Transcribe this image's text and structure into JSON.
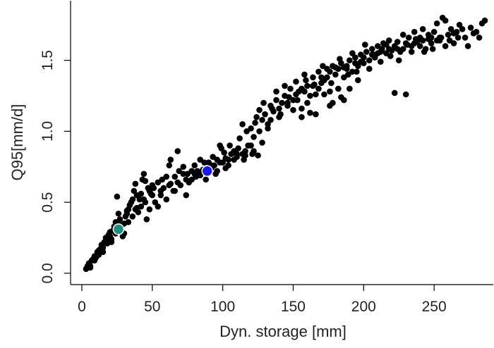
{
  "chart_data": {
    "type": "scatter",
    "title": "",
    "xlabel": "Dyn. storage [mm]",
    "ylabel": "Q95[mm/d]",
    "xlim": [
      -8,
      292
    ],
    "ylim": [
      -0.08,
      1.92
    ],
    "xticks": [
      0,
      50,
      100,
      150,
      200,
      250
    ],
    "yticks": [
      0.0,
      0.5,
      1.0,
      1.5
    ],
    "xtick_labels": [
      "0",
      "50",
      "100",
      "150",
      "200",
      "250"
    ],
    "ytick_labels": [
      "0.0",
      "0.5",
      "1.0",
      "1.5"
    ],
    "grid": false,
    "point_color": "#000000",
    "series": [
      {
        "points": [
          [
            3,
            0.03
          ],
          [
            4,
            0.05
          ],
          [
            5,
            0.07
          ],
          [
            6,
            0.05
          ],
          [
            7,
            0.09
          ],
          [
            8,
            0.1
          ],
          [
            9,
            0.12
          ],
          [
            10,
            0.11
          ],
          [
            11,
            0.15
          ],
          [
            12,
            0.13
          ],
          [
            13,
            0.17
          ],
          [
            14,
            0.2
          ],
          [
            15,
            0.18
          ],
          [
            16,
            0.22
          ],
          [
            17,
            0.25
          ],
          [
            18,
            0.21
          ],
          [
            19,
            0.27
          ],
          [
            20,
            0.29
          ],
          [
            21,
            0.24
          ],
          [
            22,
            0.3
          ],
          [
            23,
            0.33
          ],
          [
            24,
            0.36
          ],
          [
            25,
            0.54
          ],
          [
            26,
            0.42
          ],
          [
            27,
            0.38
          ],
          [
            28,
            0.33
          ],
          [
            29,
            0.26
          ],
          [
            30,
            0.28
          ],
          [
            31,
            0.4
          ],
          [
            32,
            0.44
          ],
          [
            33,
            0.36
          ],
          [
            34,
            0.48
          ],
          [
            35,
            0.5
          ],
          [
            36,
            0.4
          ],
          [
            37,
            0.58
          ],
          [
            38,
            0.63
          ],
          [
            39,
            0.46
          ],
          [
            40,
            0.43
          ],
          [
            41,
            0.52
          ],
          [
            42,
            0.56
          ],
          [
            43,
            0.66
          ],
          [
            44,
            0.7
          ],
          [
            45,
            0.5
          ],
          [
            46,
            0.38
          ],
          [
            47,
            0.6
          ],
          [
            48,
            0.45
          ],
          [
            49,
            0.56
          ],
          [
            50,
            0.62
          ],
          [
            52,
            0.5
          ],
          [
            54,
            0.47
          ],
          [
            56,
            0.55
          ],
          [
            58,
            0.6
          ],
          [
            60,
            0.52
          ],
          [
            62,
            0.76
          ],
          [
            63,
            0.8
          ],
          [
            65,
            0.58
          ],
          [
            66,
            0.68
          ],
          [
            68,
            0.86
          ],
          [
            70,
            0.62
          ],
          [
            72,
            0.7
          ],
          [
            74,
            0.55
          ],
          [
            76,
            0.64
          ],
          [
            78,
            0.66
          ],
          [
            80,
            0.76
          ],
          [
            82,
            0.72
          ],
          [
            84,
            0.69
          ],
          [
            86,
            0.73
          ],
          [
            88,
            0.66
          ],
          [
            90,
            0.78
          ],
          [
            92,
            0.74
          ],
          [
            94,
            0.76
          ],
          [
            95,
            0.7
          ],
          [
            96,
            0.8
          ],
          [
            98,
            0.9
          ],
          [
            100,
            0.78
          ],
          [
            101,
            0.85
          ],
          [
            102,
            0.81
          ],
          [
            104,
            0.76
          ],
          [
            106,
            0.84
          ],
          [
            108,
            0.8
          ],
          [
            110,
            0.82
          ],
          [
            112,
            0.95
          ],
          [
            114,
            1.05
          ],
          [
            115,
            0.8
          ],
          [
            116,
            0.86
          ],
          [
            118,
            0.9
          ],
          [
            120,
            1.02
          ],
          [
            121,
            0.84
          ],
          [
            122,
            0.96
          ],
          [
            124,
            1.1
          ],
          [
            125,
            0.83
          ],
          [
            126,
            1.0
          ],
          [
            128,
            1.08
          ],
          [
            130,
            1.12
          ],
          [
            132,
            1.05
          ],
          [
            134,
            1.18
          ],
          [
            136,
            1.14
          ],
          [
            138,
            1.22
          ],
          [
            140,
            1.1
          ],
          [
            142,
            1.2
          ],
          [
            144,
            1.25
          ],
          [
            146,
            1.18
          ],
          [
            148,
            1.3
          ],
          [
            150,
            1.22
          ],
          [
            152,
            1.35
          ],
          [
            154,
            1.28
          ],
          [
            156,
            1.16
          ],
          [
            158,
            1.4
          ],
          [
            160,
            1.32
          ],
          [
            162,
            1.13
          ],
          [
            164,
            1.38
          ],
          [
            166,
            1.26
          ],
          [
            168,
            1.42
          ],
          [
            170,
            1.34
          ],
          [
            172,
            1.36
          ],
          [
            174,
            1.44
          ],
          [
            176,
            1.28
          ],
          [
            178,
            1.46
          ],
          [
            180,
            1.4
          ],
          [
            182,
            1.3
          ],
          [
            184,
            1.48
          ],
          [
            186,
            1.38
          ],
          [
            188,
            1.44
          ],
          [
            190,
            1.5
          ],
          [
            192,
            1.42
          ],
          [
            194,
            1.52
          ],
          [
            196,
            1.46
          ],
          [
            198,
            1.54
          ],
          [
            200,
            1.48
          ],
          [
            202,
            1.56
          ],
          [
            204,
            1.5
          ],
          [
            206,
            1.58
          ],
          [
            208,
            1.52
          ],
          [
            210,
            1.6
          ],
          [
            212,
            1.49
          ],
          [
            214,
            1.62
          ],
          [
            216,
            1.55
          ],
          [
            218,
            1.64
          ],
          [
            220,
            1.57
          ],
          [
            222,
            1.27
          ],
          [
            224,
            1.63
          ],
          [
            226,
            1.56
          ],
          [
            228,
            1.68
          ],
          [
            230,
            1.26
          ],
          [
            232,
            1.66
          ],
          [
            234,
            1.6
          ],
          [
            236,
            1.7
          ],
          [
            238,
            1.63
          ],
          [
            240,
            1.66
          ],
          [
            242,
            1.72
          ],
          [
            244,
            1.58
          ],
          [
            246,
            1.65
          ],
          [
            248,
            1.62
          ],
          [
            250,
            1.7
          ],
          [
            252,
            1.76
          ],
          [
            254,
            1.64
          ],
          [
            256,
            1.8
          ],
          [
            258,
            1.78
          ],
          [
            260,
            1.68
          ],
          [
            262,
            1.72
          ],
          [
            264,
            1.62
          ],
          [
            266,
            1.7
          ],
          [
            268,
            1.75
          ],
          [
            272,
            1.66
          ],
          [
            276,
            1.73
          ],
          [
            280,
            1.7
          ],
          [
            284,
            1.76
          ],
          [
            286,
            1.78
          ],
          [
            6,
            0.04
          ],
          [
            9,
            0.09
          ],
          [
            12,
            0.16
          ],
          [
            15,
            0.15
          ],
          [
            18,
            0.24
          ],
          [
            21,
            0.22
          ],
          [
            24,
            0.28
          ],
          [
            27,
            0.31
          ],
          [
            30,
            0.35
          ],
          [
            33,
            0.45
          ],
          [
            36,
            0.52
          ],
          [
            39,
            0.55
          ],
          [
            42,
            0.47
          ],
          [
            45,
            0.65
          ],
          [
            48,
            0.58
          ],
          [
            51,
            0.6
          ],
          [
            54,
            0.64
          ],
          [
            57,
            0.66
          ],
          [
            60,
            0.68
          ],
          [
            63,
            0.63
          ],
          [
            66,
            0.58
          ],
          [
            69,
            0.72
          ],
          [
            72,
            0.75
          ],
          [
            75,
            0.7
          ],
          [
            78,
            0.72
          ],
          [
            81,
            0.68
          ],
          [
            84,
            0.8
          ],
          [
            87,
            0.78
          ],
          [
            90,
            0.73
          ],
          [
            93,
            0.82
          ],
          [
            96,
            0.72
          ],
          [
            99,
            0.88
          ],
          [
            102,
            0.74
          ],
          [
            105,
            0.9
          ],
          [
            108,
            0.86
          ],
          [
            111,
            0.88
          ],
          [
            114,
            0.84
          ],
          [
            117,
            1.0
          ],
          [
            120,
            0.9
          ],
          [
            123,
            1.06
          ],
          [
            126,
            1.15
          ],
          [
            129,
            1.2
          ],
          [
            132,
            1.02
          ],
          [
            135,
            1.16
          ],
          [
            138,
            1.28
          ],
          [
            141,
            1.12
          ],
          [
            144,
            1.32
          ],
          [
            147,
            1.24
          ],
          [
            150,
            1.15
          ],
          [
            153,
            1.22
          ],
          [
            156,
            1.3
          ],
          [
            159,
            1.36
          ],
          [
            162,
            1.25
          ],
          [
            165,
            1.33
          ],
          [
            168,
            1.3
          ],
          [
            171,
            1.46
          ],
          [
            174,
            1.38
          ],
          [
            177,
            1.34
          ],
          [
            180,
            1.45
          ],
          [
            183,
            1.51
          ],
          [
            186,
            1.45
          ],
          [
            189,
            1.4
          ],
          [
            192,
            1.55
          ],
          [
            195,
            1.42
          ],
          [
            198,
            1.49
          ],
          [
            201,
            1.61
          ],
          [
            204,
            1.44
          ],
          [
            207,
            1.54
          ],
          [
            210,
            1.55
          ],
          [
            213,
            1.58
          ],
          [
            216,
            1.61
          ],
          [
            219,
            1.53
          ],
          [
            222,
            1.6
          ],
          [
            225,
            1.5
          ],
          [
            228,
            1.58
          ],
          [
            231,
            1.61
          ],
          [
            234,
            1.56
          ],
          [
            237,
            1.65
          ],
          [
            240,
            1.6
          ],
          [
            243,
            1.56
          ],
          [
            246,
            1.68
          ],
          [
            249,
            1.58
          ],
          [
            252,
            1.64
          ],
          [
            255,
            1.66
          ],
          [
            258,
            1.6
          ],
          [
            261,
            1.64
          ],
          [
            264,
            1.69
          ],
          [
            267,
            1.66
          ],
          [
            270,
            1.72
          ],
          [
            274,
            1.6
          ],
          [
            278,
            1.69
          ],
          [
            282,
            1.66
          ],
          [
            20,
            0.26
          ],
          [
            26,
            0.35
          ],
          [
            32,
            0.42
          ],
          [
            38,
            0.45
          ],
          [
            44,
            0.52
          ],
          [
            50,
            0.55
          ],
          [
            56,
            0.58
          ],
          [
            62,
            0.62
          ],
          [
            68,
            0.64
          ],
          [
            74,
            0.66
          ],
          [
            80,
            0.7
          ],
          [
            86,
            0.72
          ],
          [
            92,
            0.76
          ],
          [
            98,
            0.78
          ],
          [
            104,
            0.8
          ],
          [
            110,
            0.84
          ],
          [
            116,
            0.83
          ],
          [
            122,
            0.86
          ],
          [
            128,
            0.92
          ],
          [
            134,
            1.08
          ],
          [
            140,
            1.16
          ],
          [
            146,
            1.2
          ],
          [
            152,
            1.26
          ],
          [
            158,
            1.28
          ],
          [
            164,
            1.32
          ],
          [
            170,
            1.38
          ],
          [
            176,
            1.42
          ],
          [
            182,
            1.44
          ],
          [
            188,
            1.46
          ],
          [
            194,
            1.48
          ],
          [
            200,
            1.52
          ],
          [
            206,
            1.54
          ],
          [
            212,
            1.56
          ],
          [
            218,
            1.58
          ],
          [
            224,
            1.58
          ],
          [
            230,
            1.62
          ],
          [
            236,
            1.62
          ],
          [
            242,
            1.64
          ],
          [
            248,
            1.66
          ],
          [
            254,
            1.66
          ],
          [
            160,
            1.2
          ],
          [
            166,
            1.12
          ],
          [
            172,
            1.26
          ],
          [
            178,
            1.2
          ],
          [
            184,
            1.24
          ],
          [
            190,
            1.3
          ],
          [
            196,
            1.36
          ],
          [
            186,
            1.22
          ],
          [
            176,
            1.18
          ],
          [
            156,
            1.1
          ]
        ]
      }
    ],
    "highlights": [
      {
        "x": 26,
        "y": 0.31,
        "color": "#1e8c80"
      },
      {
        "x": 89,
        "y": 0.72,
        "color": "#1a1aee"
      }
    ]
  }
}
